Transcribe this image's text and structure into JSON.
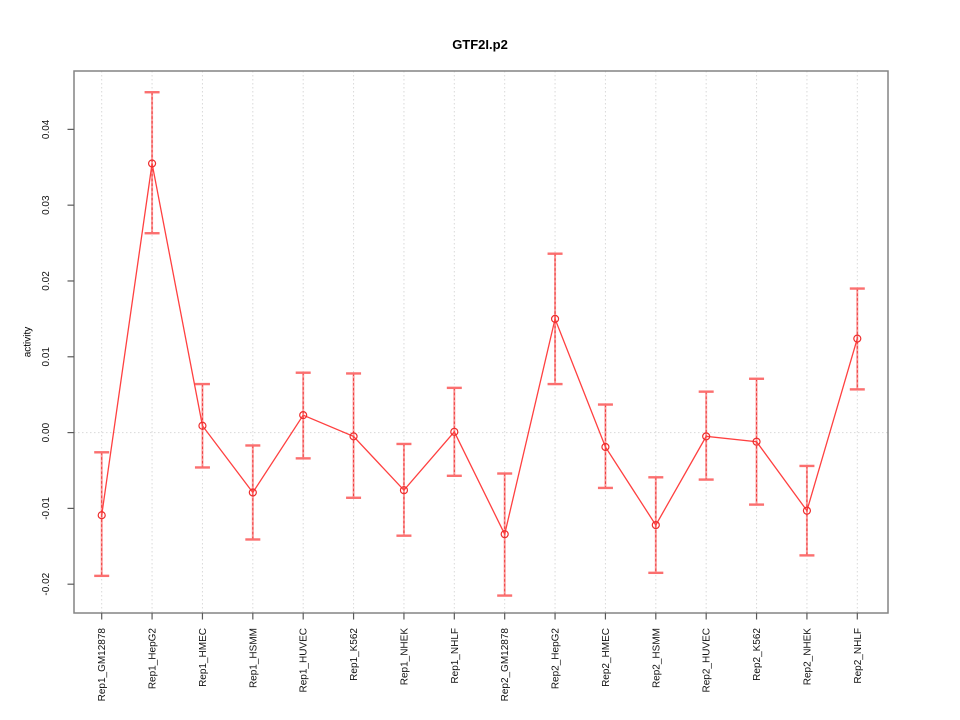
{
  "chart_data": {
    "type": "line",
    "title": "GTF2I.p2",
    "ylabel": "activity",
    "xlabel": "",
    "legend": "none",
    "grid": {
      "vertical_dotted_per_category": true,
      "zero_line_dotted": true
    },
    "categories": [
      "Rep1_GM12878",
      "Rep1_HepG2",
      "Rep1_HMEC",
      "Rep1_HSMM",
      "Rep1_HUVEC",
      "Rep1_K562",
      "Rep1_NHEK",
      "Rep1_NHLF",
      "Rep2_GM12878",
      "Rep2_HepG2",
      "Rep2_HMEC",
      "Rep2_HSMM",
      "Rep2_HUVEC",
      "Rep2_K562",
      "Rep2_NHEK",
      "Rep2_NHLF"
    ],
    "series": [
      {
        "name": "activity",
        "values": [
          -0.0109,
          0.0355,
          0.0009,
          -0.0079,
          0.0023,
          -0.0005,
          -0.0076,
          0.0001,
          -0.0134,
          0.015,
          -0.0019,
          -0.0122,
          -0.0005,
          -0.0012,
          -0.0103,
          0.0124
        ],
        "lower": [
          -0.0189,
          0.0263,
          -0.0046,
          -0.0141,
          -0.0034,
          -0.0086,
          -0.0136,
          -0.0057,
          -0.0215,
          0.0064,
          -0.0073,
          -0.0185,
          -0.0062,
          -0.0095,
          -0.0162,
          0.0057
        ],
        "upper": [
          -0.0026,
          0.0449,
          0.0064,
          -0.0017,
          0.0079,
          0.0078,
          -0.0015,
          0.0059,
          -0.0054,
          0.0236,
          0.0037,
          -0.0059,
          0.0054,
          0.0071,
          -0.0044,
          0.019
        ]
      }
    ],
    "ylim": [
      -0.0238,
      0.0477
    ],
    "yticks": [
      -0.02,
      -0.01,
      0.0,
      0.01,
      0.02,
      0.03,
      0.04
    ],
    "ytick_labels": [
      "-0.02",
      "-0.01",
      "0.00",
      "0.01",
      "0.02",
      "0.03",
      "0.04"
    ],
    "colors": {
      "line": "#ff4040",
      "marker": "#ee2d2d",
      "errorbar_cap": "#fb6f6f",
      "errorbar_line": "#fb8a8a",
      "errorbar_dash": "#ee3535",
      "grid": "#d9d9d9",
      "frame": "#848484",
      "tick": "#5a5a5a",
      "label": "#111111"
    }
  }
}
